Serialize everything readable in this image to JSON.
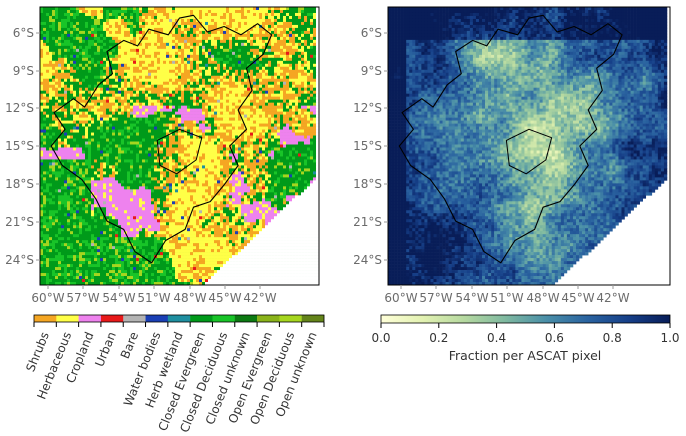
{
  "chart_data": [
    {
      "type": "heatmap",
      "subtype": "categorical land-cover map",
      "x_ticks": [
        "60°W",
        "57°W",
        "54°W",
        "51°W",
        "48°W",
        "45°W",
        "42°W"
      ],
      "y_ticks": [
        "6°S",
        "9°S",
        "12°S",
        "15°S",
        "18°S",
        "21°S",
        "24°S"
      ],
      "x_range_deg": [
        -61.8,
        -39.3
      ],
      "y_range_deg": [
        -4.3,
        -26.7
      ],
      "categories": [
        {
          "label": "Shrubs",
          "color": "#f5a623"
        },
        {
          "label": "Herbaceous",
          "color": "#ffff47"
        },
        {
          "label": "Cropland",
          "color": "#ee82ee"
        },
        {
          "label": "Urban",
          "color": "#e8191a"
        },
        {
          "label": "Bare",
          "color": "#b3b3b3"
        },
        {
          "label": "Water bodies",
          "color": "#1a3fb5"
        },
        {
          "label": "Herb wetland",
          "color": "#1e8fa0"
        },
        {
          "label": "Closed Evergreen",
          "color": "#009a1a"
        },
        {
          "label": "Closed Deciduous",
          "color": "#18c428"
        },
        {
          "label": "Closed unknown",
          "color": "#0c7a12"
        },
        {
          "label": "Open Evergreen",
          "color": "#8ab31a"
        },
        {
          "label": "Open Deciduous",
          "color": "#a6d61f"
        },
        {
          "label": "Open unknown",
          "color": "#64841a"
        }
      ]
    },
    {
      "type": "heatmap",
      "subtype": "continuous fraction map",
      "x_ticks": [
        "60°W",
        "57°W",
        "54°W",
        "51°W",
        "48°W",
        "45°W",
        "42°W"
      ],
      "y_ticks": [
        "6°S",
        "9°S",
        "12°S",
        "15°S",
        "18°S",
        "21°S",
        "24°S"
      ],
      "colorbar": {
        "label": "Fraction per ASCAT pixel",
        "min": 0.0,
        "max": 1.0,
        "tick_labels": [
          "0.0",
          "0.2",
          "0.4",
          "0.6",
          "0.8",
          "1.0"
        ],
        "tick_values": [
          0.0,
          0.2,
          0.4,
          0.6,
          0.8,
          1.0
        ],
        "colormap": [
          "#ffffd9",
          "#e3f2b2",
          "#b6d9a0",
          "#7fb9a0",
          "#4a8fa8",
          "#2a63a0",
          "#163f88",
          "#081d58"
        ]
      }
    }
  ]
}
